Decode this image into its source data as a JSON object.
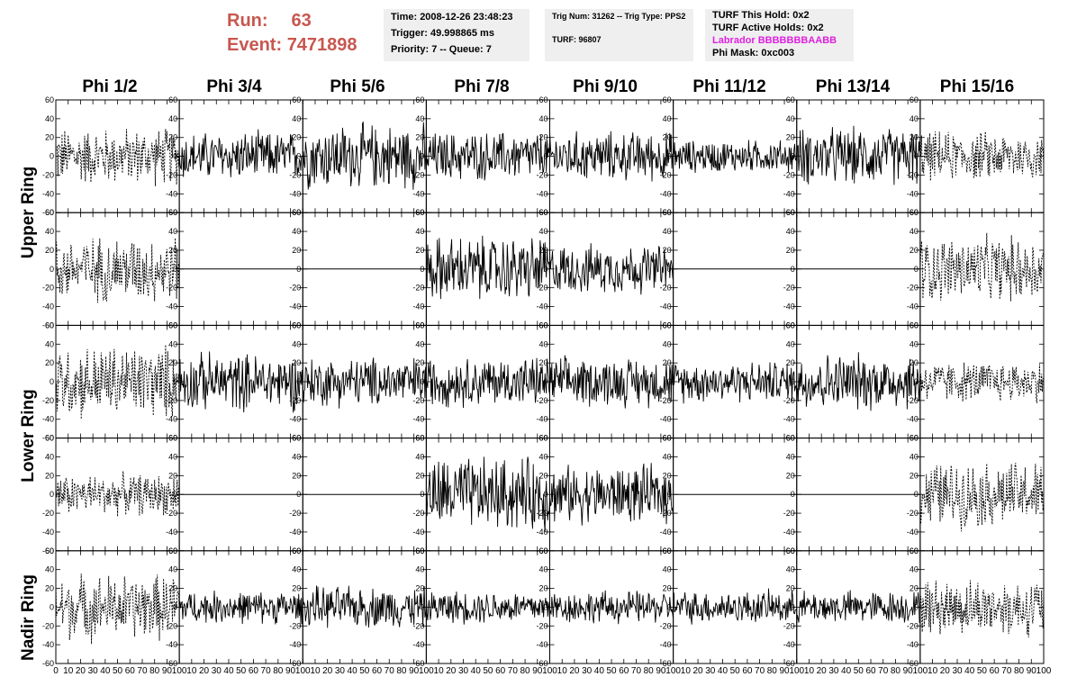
{
  "header": {
    "run_label": "Run:",
    "run_value": "63",
    "event_label": "Event:",
    "event_value": "7471898"
  },
  "time_box": {
    "time": "Time: 2008-12-26 23:48:23",
    "trigger": "Trigger: 49.998865 ms",
    "priority": "Priority: 7 -- Queue: 7"
  },
  "trig_box": {
    "trig": "Trig Num: 31262 -- Trig Type: PPS2",
    "turf": "TURF: 96807"
  },
  "turf_box": {
    "this_hold": "TURF This Hold: 0x2",
    "active_holds": "TURF Active Holds: 0x2",
    "labrador": "Labrador BBBBBBBAABB",
    "phi_mask": "Phi Mask: 0xc003"
  },
  "columns": [
    "Phi 1/2",
    "Phi 3/4",
    "Phi 5/6",
    "Phi 7/8",
    "Phi 9/10",
    "Phi 11/12",
    "Phi 13/14",
    "Phi 15/16"
  ],
  "rings": [
    "Upper Ring",
    "Lower Ring",
    "Nadir Ring"
  ],
  "y_ticks": [
    "60",
    "40",
    "20",
    "0",
    "-20",
    "-40",
    "-60"
  ],
  "x_ticks": [
    "0",
    "10",
    "20",
    "30",
    "40",
    "50",
    "60",
    "70",
    "80",
    "90",
    "100"
  ],
  "colors": {
    "header_red": "#c8574f",
    "labrador_magenta": "#e020e0",
    "trace": "#000000"
  },
  "chart_data": {
    "type": "line",
    "title": "",
    "xlabel": "",
    "ylabel": "",
    "xlim": [
      0,
      100
    ],
    "ylim": [
      -60,
      60
    ],
    "rows": 5,
    "cols": 8,
    "panel_styles": [
      [
        "dashed",
        "solid",
        "solid",
        "solid",
        "solid",
        "solid",
        "solid",
        "dashed"
      ],
      [
        "dashed",
        "flat",
        "flat",
        "solid",
        "solid",
        "flat",
        "flat",
        "dashed"
      ],
      [
        "dashed",
        "solid",
        "solid",
        "solid",
        "solid",
        "solid",
        "solid",
        "dashed"
      ],
      [
        "dashed",
        "flat",
        "flat",
        "solid",
        "solid",
        "flat",
        "flat",
        "dashed"
      ],
      [
        "dashed",
        "solid",
        "solid",
        "solid",
        "solid",
        "solid",
        "solid",
        "dashed"
      ]
    ],
    "panel_amplitude": [
      [
        35,
        30,
        40,
        30,
        30,
        20,
        35,
        30
      ],
      [
        40,
        0,
        0,
        40,
        30,
        0,
        0,
        40
      ],
      [
        45,
        35,
        30,
        30,
        30,
        25,
        35,
        25
      ],
      [
        25,
        0,
        0,
        45,
        35,
        0,
        0,
        40
      ],
      [
        40,
        20,
        25,
        20,
        20,
        20,
        20,
        35
      ]
    ]
  }
}
